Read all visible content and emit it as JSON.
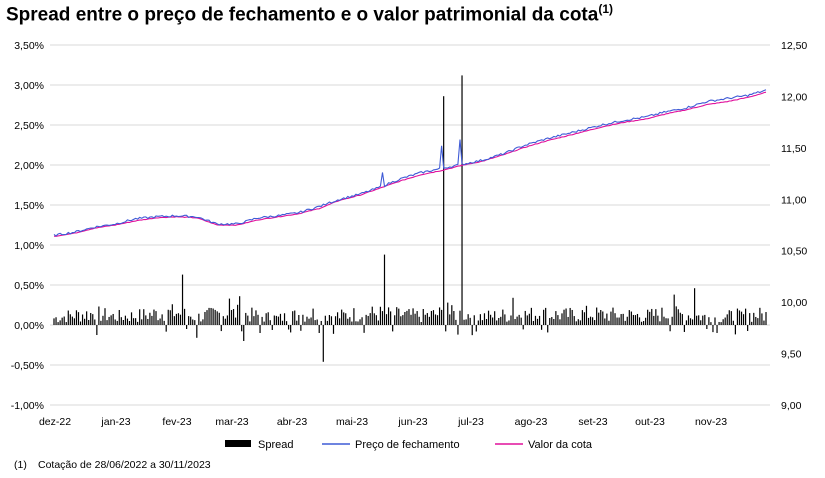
{
  "title": {
    "main": "Spread entre o preço de fechamento e o valor patrimonial da cota",
    "superscript": "(1)"
  },
  "footnote": {
    "marker": "(1)",
    "text": "Cotação de 28/06/2022 a 30/11/2023"
  },
  "chart_data": {
    "type": "bar+line",
    "categories": [
      "dez-22",
      "jan-23",
      "fev-23",
      "mar-23",
      "abr-23",
      "mai-23",
      "jun-23",
      "jul-23",
      "ago-23",
      "set-23",
      "out-23",
      "nov-23"
    ],
    "left_axis": {
      "ticks": [
        "-1,00%",
        "-0,50%",
        "0,00%",
        "0,50%",
        "1,00%",
        "1,50%",
        "2,00%",
        "2,50%",
        "3,00%",
        "3,50%"
      ],
      "ylim": [
        -1.0,
        3.5
      ]
    },
    "right_axis": {
      "ticks": [
        "9,00",
        "9,50",
        "10,00",
        "10,50",
        "11,00",
        "11,50",
        "12,00",
        "12,50"
      ],
      "ylim": [
        9.0,
        12.5
      ]
    },
    "colors": {
      "spread": "#000000",
      "preco": "#3F5BD6",
      "cota": "#E0109B",
      "grid": "#D9D9D9"
    },
    "series": [
      {
        "name": "Spread",
        "axis": "left",
        "kind": "bar",
        "anchors": [
          [
            0,
            0.12
          ],
          [
            10,
            0.18
          ],
          [
            20,
            0.2
          ],
          [
            30,
            0.15
          ],
          [
            40,
            0.16
          ],
          [
            50,
            0.2
          ],
          [
            60,
            0.22
          ],
          [
            70,
            0.14
          ],
          [
            80,
            0.2
          ],
          [
            90,
            0.21
          ],
          [
            100,
            0.16
          ],
          [
            110,
            0.12
          ],
          [
            120,
            0.18
          ],
          [
            130,
            0.21
          ],
          [
            140,
            0.16
          ],
          [
            150,
            0.2
          ],
          [
            160,
            0.2
          ],
          [
            170,
            0.18
          ],
          [
            180,
            0.16
          ],
          [
            190,
            0.2
          ],
          [
            200,
            0.2
          ],
          [
            210,
            0.15
          ],
          [
            220,
            0.17
          ],
          [
            230,
            0.18
          ],
          [
            240,
            0.2
          ],
          [
            250,
            0.17
          ],
          [
            260,
            0.2
          ],
          [
            270,
            0.18
          ],
          [
            280,
            0.18
          ],
          [
            290,
            0.16
          ],
          [
            300,
            0.2
          ],
          [
            310,
            0.18
          ],
          [
            320,
            0.14
          ],
          [
            330,
            0.15
          ],
          [
            340,
            0.18
          ],
          [
            349,
            0.18
          ]
        ],
        "spikes": [
          [
            63,
            0.63
          ],
          [
            65,
            -0.05
          ],
          [
            70,
            -0.16
          ],
          [
            86,
            0.33
          ],
          [
            91,
            0.36
          ],
          [
            93,
            -0.2
          ],
          [
            101,
            -0.1
          ],
          [
            132,
            -0.46
          ],
          [
            162,
            0.88
          ],
          [
            166,
            -0.08
          ],
          [
            191,
            2.86
          ],
          [
            193,
            0.28
          ],
          [
            198,
            -0.12
          ],
          [
            200,
            3.12
          ],
          [
            225,
            0.34
          ],
          [
            304,
            0.38
          ],
          [
            314,
            0.46
          ],
          [
            320,
            -0.05
          ]
        ]
      },
      {
        "name": "Preço de fechamento",
        "axis": "right",
        "kind": "line",
        "anchors": [
          [
            0,
            10.65
          ],
          [
            10,
            10.68
          ],
          [
            20,
            10.73
          ],
          [
            30,
            10.76
          ],
          [
            40,
            10.81
          ],
          [
            50,
            10.83
          ],
          [
            60,
            10.84
          ],
          [
            70,
            10.83
          ],
          [
            80,
            10.76
          ],
          [
            90,
            10.76
          ],
          [
            100,
            10.82
          ],
          [
            110,
            10.84
          ],
          [
            120,
            10.87
          ],
          [
            130,
            10.93
          ],
          [
            140,
            11.0
          ],
          [
            150,
            11.05
          ],
          [
            160,
            11.12
          ],
          [
            170,
            11.2
          ],
          [
            180,
            11.26
          ],
          [
            190,
            11.3
          ],
          [
            200,
            11.34
          ],
          [
            210,
            11.38
          ],
          [
            220,
            11.44
          ],
          [
            230,
            11.52
          ],
          [
            240,
            11.58
          ],
          [
            250,
            11.63
          ],
          [
            260,
            11.68
          ],
          [
            270,
            11.73
          ],
          [
            280,
            11.77
          ],
          [
            290,
            11.8
          ],
          [
            300,
            11.85
          ],
          [
            310,
            11.89
          ],
          [
            320,
            11.95
          ],
          [
            330,
            11.98
          ],
          [
            340,
            12.01
          ],
          [
            349,
            12.06
          ]
        ],
        "spikes": [
          [
            134,
            10.96
          ],
          [
            161,
            11.26
          ],
          [
            190,
            11.52
          ],
          [
            199,
            11.58
          ]
        ]
      },
      {
        "name": "Valor da cota",
        "axis": "right",
        "kind": "line",
        "anchors": [
          [
            0,
            10.64
          ],
          [
            10,
            10.67
          ],
          [
            20,
            10.72
          ],
          [
            30,
            10.75
          ],
          [
            40,
            10.79
          ],
          [
            50,
            10.82
          ],
          [
            60,
            10.83
          ],
          [
            70,
            10.82
          ],
          [
            80,
            10.75
          ],
          [
            90,
            10.75
          ],
          [
            100,
            10.8
          ],
          [
            110,
            10.83
          ],
          [
            120,
            10.86
          ],
          [
            130,
            10.91
          ],
          [
            140,
            10.99
          ],
          [
            150,
            11.04
          ],
          [
            160,
            11.11
          ],
          [
            170,
            11.18
          ],
          [
            180,
            11.24
          ],
          [
            190,
            11.28
          ],
          [
            200,
            11.33
          ],
          [
            210,
            11.37
          ],
          [
            220,
            11.43
          ],
          [
            230,
            11.5
          ],
          [
            240,
            11.56
          ],
          [
            250,
            11.61
          ],
          [
            260,
            11.66
          ],
          [
            270,
            11.71
          ],
          [
            280,
            11.75
          ],
          [
            290,
            11.78
          ],
          [
            300,
            11.83
          ],
          [
            310,
            11.87
          ],
          [
            320,
            11.92
          ],
          [
            330,
            11.95
          ],
          [
            340,
            11.99
          ],
          [
            349,
            12.04
          ]
        ],
        "spikes": []
      }
    ],
    "legend": [
      "Spread",
      "Preço de fechamento",
      "Valor da cota"
    ],
    "legend_position": "bottom",
    "grid": true
  }
}
